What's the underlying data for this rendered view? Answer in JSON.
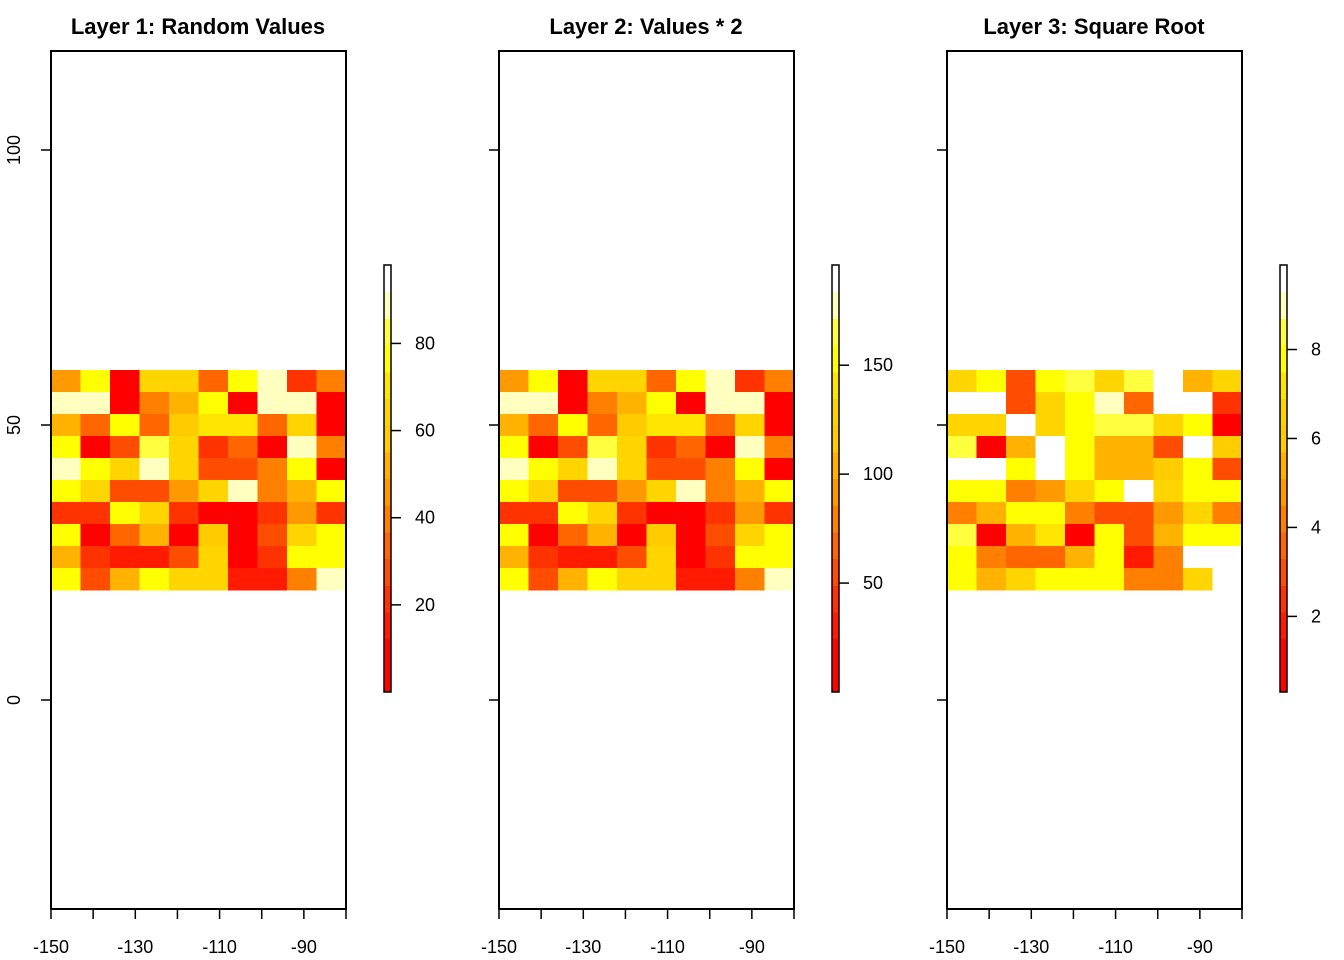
{
  "chart_data": [
    {
      "type": "heatmap",
      "title": "Layer 1: Random Values",
      "xlim": [
        -150,
        -80
      ],
      "ylim": [
        -38,
        118
      ],
      "x_ticks": [
        -150,
        -140,
        -130,
        -120,
        -110,
        -100,
        -90,
        -80
      ],
      "x_tick_labels": [
        "-150",
        "-130",
        "-110",
        "-90"
      ],
      "y_ticks": [
        0,
        50,
        100
      ],
      "y_tick_labels": [
        "0",
        "50",
        "100"
      ],
      "grid": false,
      "raster": {
        "x_edges": [
          -150,
          -143,
          -136,
          -129,
          -122,
          -115,
          -108,
          -101,
          -94,
          -87,
          -80
        ],
        "y_edges": [
          60,
          56,
          52,
          48,
          44,
          40,
          36,
          32,
          28,
          24,
          20
        ],
        "levels": [
          [
            7,
            12,
            1,
            10,
            10,
            5,
            12,
            14,
            3,
            6
          ],
          [
            14,
            14,
            1,
            6,
            8,
            12,
            1,
            14,
            14,
            1
          ],
          [
            8,
            5,
            12,
            5,
            9,
            11,
            11,
            5,
            10,
            1
          ],
          [
            12,
            1,
            4,
            13,
            10,
            3,
            5,
            1,
            14,
            6
          ],
          [
            14,
            12,
            10,
            14,
            10,
            4,
            4,
            6,
            12,
            1
          ],
          [
            12,
            10,
            4,
            4,
            7,
            10,
            14,
            6,
            8,
            12
          ],
          [
            3,
            3,
            12,
            10,
            3,
            1,
            1,
            3,
            7,
            3
          ],
          [
            12,
            1,
            5,
            8,
            1,
            9,
            1,
            4,
            10,
            12
          ],
          [
            8,
            3,
            2,
            2,
            4,
            10,
            1,
            3,
            12,
            12
          ],
          [
            12,
            4,
            8,
            12,
            10,
            10,
            2,
            2,
            6,
            14
          ]
        ]
      },
      "legend": {
        "position": "right",
        "ticks": [
          20,
          40,
          60,
          80
        ],
        "tick_labels": [
          "20",
          "40",
          "60",
          "80"
        ],
        "range": [
          0,
          98
        ]
      }
    },
    {
      "type": "heatmap",
      "title": "Layer 2: Values * 2",
      "xlim": [
        -150,
        -80
      ],
      "ylim": [
        -38,
        118
      ],
      "x_ticks": [
        -150,
        -140,
        -130,
        -120,
        -110,
        -100,
        -90,
        -80
      ],
      "x_tick_labels": [
        "-150",
        "-130",
        "-110",
        "-90"
      ],
      "y_ticks": [
        0,
        50,
        100
      ],
      "y_tick_labels": [],
      "grid": false,
      "raster": {
        "x_edges": [
          -150,
          -143,
          -136,
          -129,
          -122,
          -115,
          -108,
          -101,
          -94,
          -87,
          -80
        ],
        "y_edges": [
          60,
          56,
          52,
          48,
          44,
          40,
          36,
          32,
          28,
          24,
          20
        ],
        "levels": [
          [
            7,
            12,
            1,
            10,
            10,
            5,
            12,
            14,
            3,
            6
          ],
          [
            14,
            14,
            1,
            6,
            8,
            12,
            1,
            14,
            14,
            1
          ],
          [
            8,
            5,
            12,
            5,
            9,
            11,
            11,
            5,
            10,
            1
          ],
          [
            12,
            1,
            4,
            13,
            10,
            3,
            5,
            1,
            14,
            6
          ],
          [
            14,
            12,
            10,
            14,
            10,
            4,
            4,
            6,
            12,
            1
          ],
          [
            12,
            10,
            4,
            4,
            7,
            10,
            14,
            6,
            8,
            12
          ],
          [
            3,
            3,
            12,
            10,
            3,
            1,
            1,
            3,
            7,
            3
          ],
          [
            12,
            1,
            5,
            8,
            1,
            9,
            1,
            4,
            10,
            12
          ],
          [
            8,
            3,
            2,
            2,
            4,
            10,
            1,
            3,
            12,
            12
          ],
          [
            12,
            4,
            8,
            12,
            10,
            10,
            2,
            2,
            6,
            14
          ]
        ]
      },
      "legend": {
        "position": "right",
        "ticks": [
          50,
          100,
          150
        ],
        "tick_labels": [
          "50",
          "100",
          "150"
        ],
        "range": [
          0,
          196
        ]
      }
    },
    {
      "type": "heatmap",
      "title": "Layer 3: Square Root",
      "xlim": [
        -150,
        -80
      ],
      "ylim": [
        -38,
        118
      ],
      "x_ticks": [
        -150,
        -140,
        -130,
        -120,
        -110,
        -100,
        -90,
        -80
      ],
      "x_tick_labels": [
        "-150",
        "-130",
        "-110",
        "-90"
      ],
      "y_ticks": [
        0,
        50,
        100
      ],
      "y_tick_labels": [],
      "grid": false,
      "raster": {
        "x_edges": [
          -150,
          -143,
          -136,
          -129,
          -122,
          -115,
          -108,
          -101,
          -94,
          -87,
          -80
        ],
        "y_edges": [
          60,
          56,
          52,
          48,
          44,
          40,
          36,
          32,
          28,
          24,
          20
        ],
        "levels": [
          [
            10,
            12,
            4,
            12,
            13,
            10,
            13,
            15,
            8,
            10
          ],
          [
            15,
            15,
            4,
            10,
            12,
            14,
            5,
            15,
            15,
            3
          ],
          [
            10,
            10,
            15,
            10,
            12,
            13,
            13,
            10,
            12,
            1
          ],
          [
            13,
            1,
            8,
            15,
            12,
            8,
            8,
            4,
            15,
            9
          ],
          [
            15,
            15,
            12,
            15,
            12,
            8,
            8,
            9,
            12,
            4
          ],
          [
            12,
            12,
            6,
            7,
            10,
            12,
            15,
            10,
            12,
            12
          ],
          [
            6,
            8,
            12,
            12,
            6,
            4,
            4,
            7,
            10,
            6
          ],
          [
            13,
            1,
            8,
            11,
            1,
            12,
            4,
            8,
            12,
            12
          ],
          [
            12,
            6,
            5,
            5,
            8,
            12,
            2,
            6,
            15,
            15
          ],
          [
            12,
            8,
            10,
            12,
            12,
            12,
            6,
            6,
            10,
            15
          ]
        ]
      },
      "legend": {
        "position": "right",
        "ticks": [
          2,
          4,
          6,
          8
        ],
        "tick_labels": [
          "2",
          "4",
          "6",
          "8"
        ],
        "range": [
          0.3,
          9.9
        ]
      }
    }
  ],
  "palette": {
    "colors": [
      "#FF0000",
      "#FF0000",
      "#FF1A00",
      "#FF3300",
      "#FF4D00",
      "#FF6600",
      "#FF8000",
      "#FF9900",
      "#FFB300",
      "#FFCC00",
      "#FFD500",
      "#FFE600",
      "#FFFF00",
      "#FFFF40",
      "#FFFFBF",
      "#FFFFFF"
    ]
  }
}
